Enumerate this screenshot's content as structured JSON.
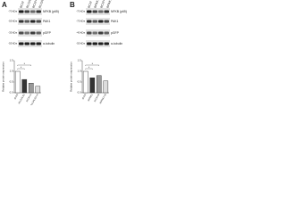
{
  "panels": [
    {
      "label": "A",
      "lanes": [
        "shCtrl",
        "shLGALS1",
        "shCtrl+A",
        "shLGALS1+A"
      ],
      "markers": [
        "-70 kDa",
        "-55 kDa",
        "-35 kDa",
        "-55 kDa"
      ],
      "proteins": [
        "NFKB (p65)",
        "PAK1",
        "pGFP",
        "α-tubulin"
      ],
      "chart": {
        "type": "bar",
        "ylabel": "Relative protein expression",
        "categories": [
          "shCtrl",
          "shLGALS1",
          "shCtrl+A",
          "shLGALS1+A"
        ],
        "values": [
          1,
          0.62,
          0.45,
          0.3
        ],
        "colors": [
          "#ffffff",
          "#333333",
          "#999999",
          "#dddddd"
        ],
        "ylim": [
          0,
          1.5
        ],
        "yticks": [
          {
            "value": 0,
            "label": "0.0"
          },
          0.5,
          {
            "value": 1,
            "label": "1.0"
          },
          1.5
        ],
        "significance": [
          "*",
          "*"
        ]
      }
    },
    {
      "label": "B",
      "lanes": [
        "shCtrl",
        "shPAK1",
        "shCtrl+B",
        "shPAK1+B"
      ],
      "markers": [
        "-70 kDa",
        "-75 kDa",
        "-40 kDa",
        "-55 kDa"
      ],
      "proteins": [
        "NFKB (p65)",
        "PAK1",
        "pGFP",
        "α-tubulin"
      ],
      "chart": {
        "type": "bar",
        "ylabel": "Relative protein expression",
        "categories": [
          "shCtrl",
          "shPAK1",
          "shCtrl+B",
          "shPAK1+B"
        ],
        "values": [
          1,
          0.7,
          0.8,
          0.55
        ],
        "colors": [
          "#ffffff",
          "#333333",
          "#999999",
          "#dddddd"
        ],
        "ylim": [
          0,
          1.5
        ],
        "yticks": [
          {
            "value": 0,
            "label": "0.0"
          },
          0.5,
          {
            "value": 1,
            "label": "1.0"
          },
          1.5
        ],
        "significance": [
          "*",
          "*"
        ]
      }
    }
  ]
}
